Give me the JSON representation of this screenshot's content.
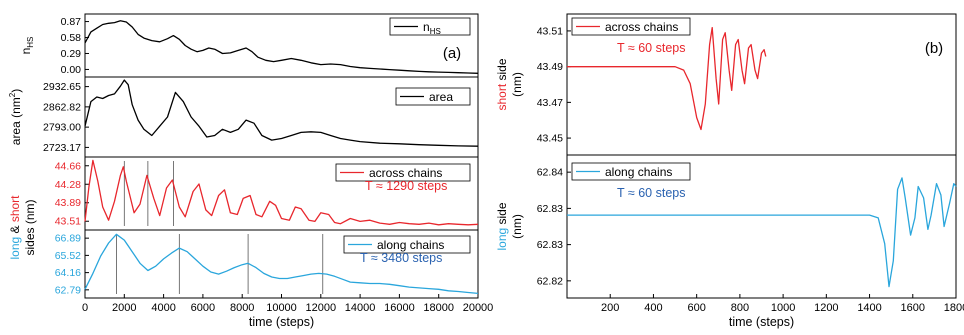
{
  "chart_data": [
    {
      "id": "a",
      "type": "line",
      "panel_label": "(a)",
      "xlabel": "time (steps)",
      "xlim": [
        0,
        20000
      ],
      "xticks": [
        "0",
        "2000",
        "4000",
        "6000",
        "8000",
        "10000",
        "12000",
        "14000",
        "16000",
        "18000",
        "20000"
      ],
      "subplots": [
        {
          "name": "nhs",
          "ylabel": "n",
          "ylabel_sub": "HS",
          "ylim": [
            -0.05,
            0.97
          ],
          "yticks": [
            "0.87",
            "0.58",
            "0.29",
            "0.00"
          ],
          "legend": [
            {
              "label": "n",
              "sub": "HS",
              "color": "#000000"
            }
          ],
          "series": [
            {
              "color": "#000000",
              "x": [
                0,
                300,
                600,
                900,
                1200,
                1500,
                1800,
                2100,
                2400,
                2700,
                3000,
                3400,
                3800,
                4200,
                4500,
                4800,
                5100,
                5400,
                5700,
                6000,
                6300,
                6600,
                7000,
                7400,
                7800,
                8200,
                8500,
                8800,
                9200,
                9600,
                10000,
                10500,
                11000,
                11500,
                12000,
                12500,
                13000,
                13500,
                14000,
                14500,
                15000,
                15500,
                16000,
                16500,
                17000,
                17500,
                18000,
                18500,
                19000,
                19500,
                20000
              ],
              "y": [
                0.5,
                0.68,
                0.74,
                0.8,
                0.82,
                0.83,
                0.86,
                0.84,
                0.76,
                0.64,
                0.58,
                0.54,
                0.52,
                0.57,
                0.62,
                0.56,
                0.46,
                0.4,
                0.36,
                0.38,
                0.42,
                0.4,
                0.33,
                0.34,
                0.38,
                0.42,
                0.36,
                0.27,
                0.22,
                0.2,
                0.22,
                0.25,
                0.22,
                0.18,
                0.15,
                0.16,
                0.15,
                0.12,
                0.1,
                0.09,
                0.08,
                0.07,
                0.06,
                0.05,
                0.04,
                0.035,
                0.03,
                0.025,
                0.02,
                0.015,
                0.01
              ]
            }
          ]
        },
        {
          "name": "area",
          "ylabel": "area (nm",
          "ylabel_sup": "2",
          "ylabel_end": ")",
          "ylim": [
            2700,
            2960
          ],
          "yticks": [
            "2932.65",
            "2862.82",
            "2793.00",
            "2723.17"
          ],
          "legend": [
            {
              "label": "area",
              "color": "#000000"
            }
          ],
          "series": [
            {
              "color": "#000000",
              "x": [
                0,
                300,
                600,
                900,
                1200,
                1500,
                1800,
                2000,
                2200,
                2400,
                2700,
                3000,
                3400,
                3800,
                4200,
                4600,
                5000,
                5400,
                5800,
                6200,
                6600,
                7000,
                7400,
                7800,
                8200,
                8600,
                9000,
                9500,
                10000,
                10500,
                11000,
                11500,
                12000,
                12500,
                13000,
                13500,
                14000,
                15000,
                16000,
                17000,
                18000,
                19000,
                20000
              ],
              "y": [
                2800,
                2880,
                2895,
                2890,
                2900,
                2905,
                2930,
                2950,
                2935,
                2870,
                2820,
                2790,
                2770,
                2800,
                2830,
                2910,
                2880,
                2830,
                2800,
                2765,
                2770,
                2790,
                2780,
                2790,
                2820,
                2810,
                2770,
                2755,
                2760,
                2770,
                2780,
                2782,
                2780,
                2770,
                2760,
                2755,
                2750,
                2745,
                2743,
                2740,
                2738,
                2736,
                2735
              ]
            }
          ]
        },
        {
          "name": "short",
          "ylabel": "long & short sides (nm)",
          "ylim": [
            43.45,
            44.72
          ],
          "yticks": [
            "44.66",
            "44.28",
            "43.89",
            "43.51"
          ],
          "ytick_color": "#e8272d",
          "legend": [
            {
              "label": "across chains",
              "color": "#e8272d"
            }
          ],
          "annotation": {
            "text": "T ≈ 1290 steps",
            "color": "#e8272d"
          },
          "vlines": [
            2000,
            3200,
            4500
          ],
          "series": [
            {
              "color": "#e8272d",
              "x": [
                0,
                200,
                400,
                650,
                900,
                1200,
                1500,
                1800,
                1950,
                2100,
                2500,
                2800,
                3150,
                3500,
                3800,
                4150,
                4450,
                4800,
                5100,
                5500,
                5800,
                6150,
                6450,
                6800,
                7100,
                7400,
                7750,
                8050,
                8400,
                8700,
                9000,
                9400,
                9700,
                10000,
                10400,
                10700,
                11000,
                11400,
                11700,
                12000,
                12400,
                12700,
                13000,
                13500,
                14000,
                14500,
                15000,
                15500,
                16000,
                16500,
                17000,
                17500,
                18000,
                18500,
                19000,
                19500,
                20000
              ],
              "y": [
                43.6,
                44.2,
                44.66,
                44.3,
                43.85,
                43.62,
                43.95,
                44.4,
                44.55,
                44.3,
                43.75,
                43.9,
                44.4,
                44.0,
                43.7,
                44.18,
                44.32,
                43.85,
                43.68,
                44.12,
                44.25,
                43.8,
                43.7,
                44.05,
                44.15,
                43.75,
                43.72,
                44.0,
                44.05,
                43.72,
                43.68,
                43.95,
                43.88,
                43.65,
                43.62,
                43.85,
                43.82,
                43.62,
                43.6,
                43.75,
                43.72,
                43.58,
                43.56,
                43.65,
                43.6,
                43.62,
                43.57,
                43.55,
                43.58,
                43.56,
                43.55,
                43.57,
                43.54,
                43.56,
                43.55,
                43.54,
                43.55
              ]
            }
          ]
        },
        {
          "name": "long",
          "ylabel": "",
          "ylim": [
            62.5,
            67.2
          ],
          "yticks": [
            "66.89",
            "65.52",
            "64.16",
            "62.79"
          ],
          "ytick_color": "#2aa6dc",
          "legend": [
            {
              "label": "along chains",
              "color": "#2aa6dc"
            }
          ],
          "annotation": {
            "text": "T ≈ 3480 steps",
            "color": "#2a62b0"
          },
          "vlines": [
            1600,
            4800,
            8300,
            12100
          ],
          "series": [
            {
              "color": "#2aa6dc",
              "x": [
                0,
                400,
                800,
                1200,
                1600,
                2000,
                2400,
                2800,
                3200,
                3600,
                4000,
                4400,
                4800,
                5200,
                5600,
                6000,
                6400,
                6800,
                7200,
                7600,
                8000,
                8300,
                8700,
                9100,
                9500,
                9900,
                10300,
                10700,
                11100,
                11500,
                11900,
                12300,
                12700,
                13100,
                13500,
                14000,
                14500,
                15000,
                15500,
                16000,
                16500,
                17000,
                17500,
                18000,
                18500,
                19000,
                19500,
                20000
              ],
              "y": [
                63.1,
                64.2,
                65.4,
                66.3,
                66.9,
                66.5,
                65.7,
                64.9,
                64.4,
                64.7,
                65.2,
                65.6,
                65.95,
                65.7,
                65.2,
                64.7,
                64.3,
                64.15,
                64.35,
                64.6,
                64.8,
                64.9,
                64.6,
                64.2,
                63.95,
                63.85,
                63.85,
                63.95,
                64.05,
                64.15,
                64.2,
                64.15,
                64.0,
                63.8,
                63.6,
                63.55,
                63.5,
                63.5,
                63.45,
                63.35,
                63.25,
                63.2,
                63.15,
                63.1,
                63.0,
                62.95,
                62.88,
                62.82
              ]
            }
          ]
        }
      ]
    },
    {
      "id": "b",
      "type": "line",
      "panel_label": "(b)",
      "xlabel": "time (steps)",
      "xlim": [
        0,
        1800
      ],
      "xticks": [
        "200",
        "400",
        "600",
        "800",
        "1000",
        "1200",
        "1400",
        "1600",
        "1800"
      ],
      "subplots": [
        {
          "name": "short",
          "ylabel_colored": "short",
          "ylabel_rest": " side",
          "ylabel_unit": "(nm)",
          "ylabel_color": "#e8272d",
          "ylim": [
            43.44,
            43.523
          ],
          "yticks": [
            "43.51",
            "43.49",
            "43.47",
            "43.45"
          ],
          "legend": [
            {
              "label": "across chains",
              "color": "#e8272d"
            }
          ],
          "annotation": {
            "text": "T ≈ 60 steps",
            "color": "#e8272d"
          },
          "series": [
            {
              "color": "#e8272d",
              "x": [
                0,
                100,
                200,
                300,
                400,
                500,
                540,
                570,
                600,
                620,
                640,
                660,
                672,
                690,
                702,
                720,
                732,
                750,
                762,
                780,
                792,
                810,
                822,
                840,
                852,
                870,
                882,
                900,
                912,
                920
              ],
              "y": [
                43.492,
                43.492,
                43.492,
                43.492,
                43.492,
                43.492,
                43.49,
                43.482,
                43.462,
                43.455,
                43.47,
                43.505,
                43.515,
                43.485,
                43.47,
                43.508,
                43.512,
                43.49,
                43.478,
                43.505,
                43.508,
                43.49,
                43.482,
                43.503,
                43.505,
                43.49,
                43.485,
                43.5,
                43.502,
                43.498
              ]
            }
          ]
        },
        {
          "name": "long",
          "ylabel_colored": "long",
          "ylabel_rest": " side",
          "ylabel_unit": "(nm)",
          "ylabel_color": "#2aa6dc",
          "ylim": [
            62.8155,
            62.8405
          ],
          "yticks": [
            "62.84",
            "62.83",
            "62.83",
            "62.82"
          ],
          "legend": [
            {
              "label": "along chains",
              "color": "#2aa6dc"
            }
          ],
          "annotation": {
            "text": "T ≈ 60 steps",
            "color": "#2a62b0"
          },
          "series": [
            {
              "color": "#2aa6dc",
              "x": [
                0,
                200,
                400,
                600,
                800,
                1000,
                1200,
                1400,
                1440,
                1470,
                1490,
                1510,
                1530,
                1550,
                1565,
                1590,
                1610,
                1625,
                1650,
                1670,
                1685,
                1710,
                1730,
                1745,
                1770,
                1790,
                1800
              ],
              "y": [
                62.83,
                62.83,
                62.83,
                62.83,
                62.83,
                62.83,
                62.83,
                62.83,
                62.8295,
                62.825,
                62.8175,
                62.822,
                62.8345,
                62.8365,
                62.833,
                62.8265,
                62.8295,
                62.835,
                62.833,
                62.8275,
                62.83,
                62.8355,
                62.8335,
                62.828,
                62.832,
                62.8355,
                62.835
              ]
            }
          ]
        }
      ]
    }
  ]
}
